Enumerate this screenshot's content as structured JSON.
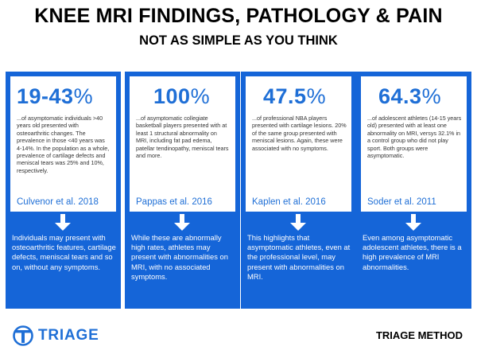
{
  "header": {
    "title": "KNEE MRI FINDINGS, PATHOLOGY & PAIN",
    "subtitle": "NOT AS SIMPLE AS YOU THINK"
  },
  "cards": [
    {
      "stat_number": "19-43",
      "stat_unit": "%",
      "description": "...of asymptomatic individuals >40 years old presented with osteoarthritic changes. The prevalence in those <40 years was 4-14%. In the population as a whole, prevalence of cartilage defects and meniscal tears was 25% and 10%, respectively.",
      "citation": "Culvenor et al. 2018",
      "summary": "Individuals may present with osteoarthritic features, cartilage defects, meniscal tears and so on, without any symptoms."
    },
    {
      "stat_number": "100",
      "stat_unit": "%",
      "description": "...of asymptomatic collegiate basketball players presented with at least 1 structural abnormality on MRI, including fat pad edema, patellar tendinopathy, meniscal tears and more.",
      "citation": "Pappas et al. 2016",
      "summary": "While these are abnormally high rates, athletes may present with abnormalities on MRI, with no associated symptoms."
    },
    {
      "stat_number": "47.5",
      "stat_unit": "%",
      "description": "...of professional NBA players presented with cartilage lesions. 20% of the same group presented with meniscal lesions. Again, these were associated with no symptoms.",
      "citation": "Kaplen et al. 2016",
      "summary": "This highlights that asymptomatic athletes, even at the professional level, may present with abnormalities on MRI."
    },
    {
      "stat_number": "64.3",
      "stat_unit": "%",
      "description": "...of adolescent athletes (14-15 years old) presented with at least one abnormality on MRI, versys 32.1% in a control group who did not play sport. Both groups were asymptomatic.",
      "citation": "Soder et al. 2011",
      "summary": "Even among asymptomatic adolescent athletes, there is a high prevalence of MRI abnormalities."
    }
  ],
  "footer": {
    "logo_text": "TRIAGE",
    "logo_icon": "triage-t-logo-icon",
    "right_text": "TRIAGE METHOD"
  },
  "colors": {
    "accent": "#1565d8",
    "stat_text": "#1f6fd6"
  }
}
